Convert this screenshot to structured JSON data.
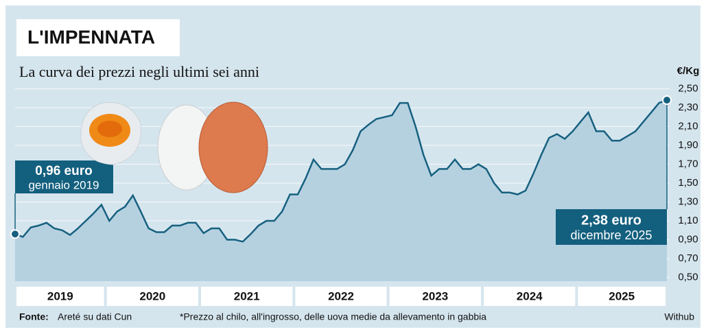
{
  "chart_data": {
    "type": "area",
    "title": "L'IMPENNATA",
    "subtitle": "La curva dei prezzi negli ultimi sei anni",
    "y_label": "€/Kg",
    "categories": [
      "2019",
      null,
      null,
      null,
      null,
      null,
      null,
      null,
      null,
      null,
      null,
      null,
      "2020",
      null,
      null,
      null,
      null,
      null,
      null,
      null,
      null,
      null,
      null,
      null,
      "2021",
      null,
      null,
      null,
      null,
      null,
      null,
      null,
      null,
      null,
      null,
      null,
      "2022",
      null,
      null,
      null,
      null,
      null,
      null,
      null,
      null,
      null,
      null,
      null,
      "2023",
      null,
      null,
      null,
      null,
      null,
      null,
      null,
      null,
      null,
      null,
      null,
      "2024",
      null,
      null,
      null,
      null,
      null,
      null,
      null,
      null,
      null,
      null,
      null,
      "2025",
      null,
      null,
      null,
      null,
      null,
      null,
      null,
      null,
      null,
      null,
      null
    ],
    "values": [
      0.96,
      0.93,
      1.03,
      1.05,
      1.08,
      1.02,
      1.0,
      0.95,
      1.02,
      1.1,
      1.18,
      1.27,
      1.1,
      1.2,
      1.25,
      1.37,
      1.2,
      1.02,
      0.98,
      0.98,
      1.05,
      1.05,
      1.08,
      1.08,
      0.97,
      1.02,
      1.02,
      0.9,
      0.9,
      0.88,
      0.96,
      1.05,
      1.1,
      1.1,
      1.2,
      1.38,
      1.38,
      1.55,
      1.75,
      1.65,
      1.65,
      1.65,
      1.7,
      1.85,
      2.05,
      2.12,
      2.18,
      2.2,
      2.22,
      2.35,
      2.35,
      2.1,
      1.8,
      1.58,
      1.65,
      1.65,
      1.75,
      1.65,
      1.65,
      1.7,
      1.65,
      1.5,
      1.4,
      1.4,
      1.38,
      1.42,
      1.6,
      1.8,
      1.98,
      2.02,
      1.97,
      2.05,
      2.15,
      2.25,
      2.05,
      2.05,
      1.95,
      1.95,
      2.0,
      2.05,
      2.15,
      2.25,
      2.35,
      2.38
    ],
    "color": "#16607f",
    "area_color": "#b5d1e0",
    "ylim": [
      0.46,
      2.58
    ],
    "yticks": [
      {
        "value": 0.5,
        "label": "0,50"
      },
      {
        "value": 0.7,
        "label": "0,70"
      },
      {
        "value": 0.9,
        "label": "0,90"
      },
      {
        "value": 1.1,
        "label": "1,10"
      },
      {
        "value": 1.3,
        "label": "1,30"
      },
      {
        "value": 1.5,
        "label": "1,50"
      },
      {
        "value": 1.7,
        "label": "1,70"
      },
      {
        "value": 1.9,
        "label": "1,90"
      },
      {
        "value": 2.1,
        "label": "2,10"
      },
      {
        "value": 2.3,
        "label": "2,30"
      },
      {
        "value": 2.5,
        "label": "2,50"
      }
    ],
    "grid": true,
    "annotations": [
      {
        "value_text": "0,96 euro",
        "date_text": "gennaio 2019"
      },
      {
        "value_text": "2,38 euro",
        "date_text": "dicembre 2025"
      }
    ],
    "source_label": "Fonte:",
    "source": "Areté su dati Cun",
    "note": "*Prezzo al chilo, all'ingrosso, delle uova medie da allevamento in gabbia",
    "credit": "Withub"
  }
}
